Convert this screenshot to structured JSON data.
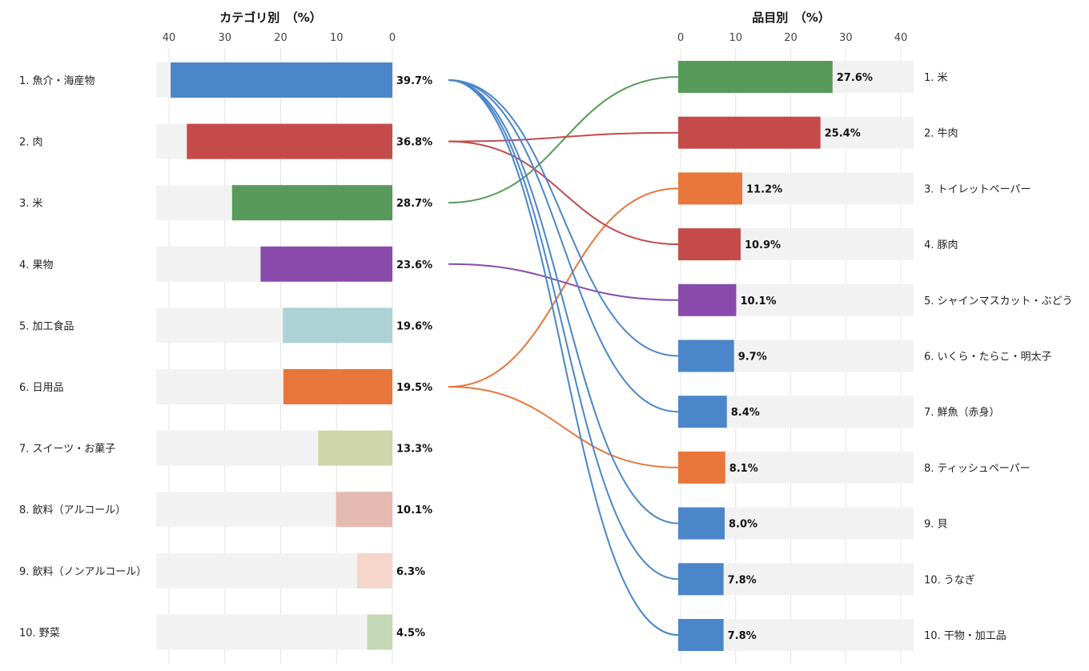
{
  "chart_data": [
    {
      "type": "bar",
      "title": "カテゴリ別　（%）",
      "orientation": "horizontal",
      "direction": "right-to-left",
      "xlim": [
        0,
        40
      ],
      "ticks": [
        "40",
        "30",
        "20",
        "10",
        "0"
      ],
      "grid": true,
      "categories": [
        "1. 魚介・海産物",
        "2. 肉",
        "3. 米",
        "4. 果物",
        "5. 加工食品",
        "6. 日用品",
        "7. スイーツ・お菓子",
        "8. 飲料（アルコール）",
        "9. 飲料（ノンアルコール）",
        "10. 野菜"
      ],
      "values": [
        39.7,
        36.8,
        28.7,
        23.6,
        19.6,
        19.5,
        13.3,
        10.1,
        6.3,
        4.5
      ],
      "value_labels": [
        "39.7%",
        "36.8%",
        "28.7%",
        "23.6%",
        "19.6%",
        "19.5%",
        "13.3%",
        "10.1%",
        "6.3%",
        "4.5%"
      ],
      "colors": [
        "#4a86c9",
        "#c44b4a",
        "#579a5a",
        "#8a4aac",
        "#acd2d6",
        "#e9763a",
        "#cfd7aa",
        "#e5bab0",
        "#f6d6cb",
        "#c4d8b6"
      ]
    },
    {
      "type": "bar",
      "title": "品目別　（%）",
      "orientation": "horizontal",
      "direction": "left-to-right",
      "xlim": [
        0,
        40
      ],
      "ticks": [
        "0",
        "10",
        "20",
        "30",
        "40"
      ],
      "grid": true,
      "categories": [
        "1. 米",
        "2. 牛肉",
        "3. トイレットペーパー",
        "4. 豚肉",
        "5. シャインマスカット・ぶどう",
        "6. いくら・たらこ・明太子",
        "7. 鮮魚（赤身）",
        "8. ティッシュペーパー",
        "9. 貝",
        "10. うなぎ",
        "10. 干物・加工品"
      ],
      "values": [
        27.6,
        25.4,
        11.2,
        10.9,
        10.1,
        9.7,
        8.4,
        8.1,
        8.0,
        7.8,
        7.8
      ],
      "value_labels": [
        "27.6%",
        "25.4%",
        "11.2%",
        "10.9%",
        "10.1%",
        "9.7%",
        "8.4%",
        "8.1%",
        "8.0%",
        "7.8%",
        "7.8%"
      ],
      "colors": [
        "#579a5a",
        "#c44b4a",
        "#e9763a",
        "#c44b4a",
        "#8a4aac",
        "#4a86c9",
        "#4a86c9",
        "#e9763a",
        "#4a86c9",
        "#4a86c9",
        "#4a86c9"
      ],
      "parent_category_index": [
        2,
        1,
        5,
        1,
        3,
        0,
        0,
        5,
        0,
        0,
        0
      ]
    }
  ],
  "styles": {
    "track_color": "#f2f2f2",
    "grid_color": "#e4e4e4"
  }
}
